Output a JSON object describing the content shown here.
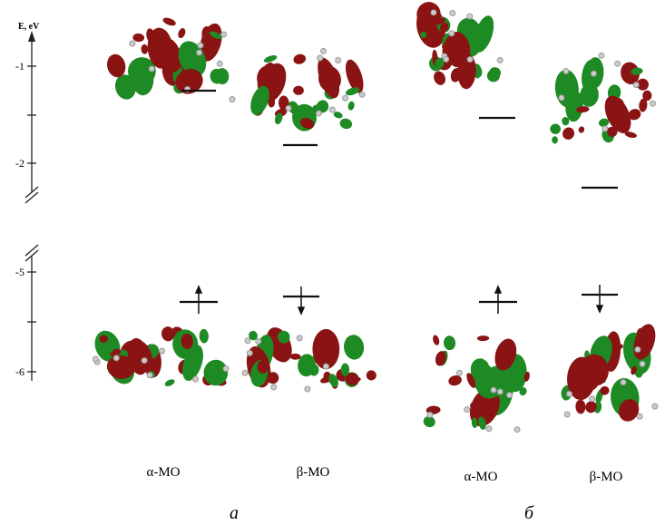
{
  "axis": {
    "label": "E, eV",
    "ticks": [
      "-1",
      "-2",
      "-5",
      "-6"
    ]
  },
  "panels": [
    {
      "label": "a",
      "columns": [
        "α-MO",
        "β-MO"
      ]
    },
    {
      "label": "б",
      "columns": [
        "α-MO",
        "β-MO"
      ]
    }
  ]
}
